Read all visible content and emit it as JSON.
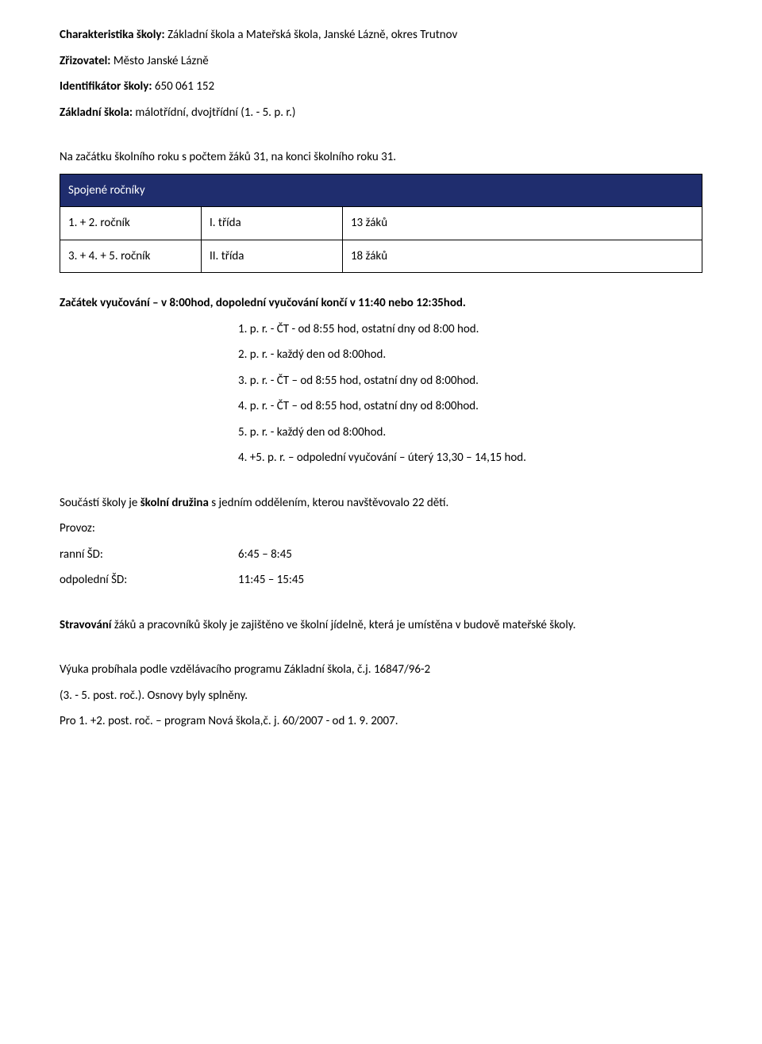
{
  "header": {
    "charakteristika_label": "Charakteristika školy:",
    "charakteristika_value": " Základní škola a Mateřská škola, Janské Lázně, okres Trutnov",
    "zrizovatel_label": "Zřizovatel:",
    "zrizovatel_value": " Město Janské Lázně",
    "identifikator_label": "Identifikátor školy:",
    "identifikator_value": " 650 061 152",
    "zakladni_label": "Základní škola:",
    "zakladni_value": " málotřídní, dvojtřídní (1. - 5. p. r.)"
  },
  "zacatek_text": "Na začátku školního roku s počtem žáků 31, na konci školního roku 31.",
  "table": {
    "header": "Spojené ročníky",
    "rows": [
      {
        "c1": "1. + 2. ročník",
        "c2": "I. třída",
        "c3": "13 žáků"
      },
      {
        "c1": "3. + 4. + 5. ročník",
        "c2": "II. třída",
        "c3": "18 žáků"
      }
    ]
  },
  "vyucovani_title": "Začátek vyučování – v 8:00hod, dopolední vyučování končí v 11:40 nebo 12:35hod.",
  "vyucovani_lines": [
    "1. p. r. - ČT - od 8:55 hod, ostatní dny od 8:00 hod.",
    "2. p. r. - každý den od 8:00hod.",
    "3. p. r. - ČT – od 8:55 hod, ostatní dny od 8:00hod.",
    "4. p. r. - ČT – od 8:55 hod, ostatní dny od 8:00hod.",
    "5. p. r. - každý den od 8:00hod.",
    "4. +5. p. r. – odpolední vyučování – úterý 13,30 – 14,15 hod."
  ],
  "druzina": {
    "prefix": "Součástí školy je ",
    "bold": "školní družina",
    "suffix": " s jedním oddělením, kterou navštěvovalo 22 dětí."
  },
  "provoz": {
    "label": "Provoz:",
    "ranni_label": "ranní ŠD:",
    "ranni_value": "6:45 – 8:45",
    "odpoledni_label": "odpolední ŠD:",
    "odpoledni_value": "11:45 – 15:45"
  },
  "stravovani": {
    "bold": "Stravování",
    "text": " žáků a pracovníků školy je zajištěno ve školní jídelně, která je umístěna v budově mateřské školy."
  },
  "vyuka": {
    "line1": "Výuka probíhala podle vzdělávacího programu Základní škola, č.j. 16847/96-2",
    "line2": "(3. - 5. post. roč.). Osnovy byly splněny.",
    "line3": "Pro 1. +2. post. roč. – program Nová škola,č. j. 60/2007 - od 1. 9. 2007."
  }
}
